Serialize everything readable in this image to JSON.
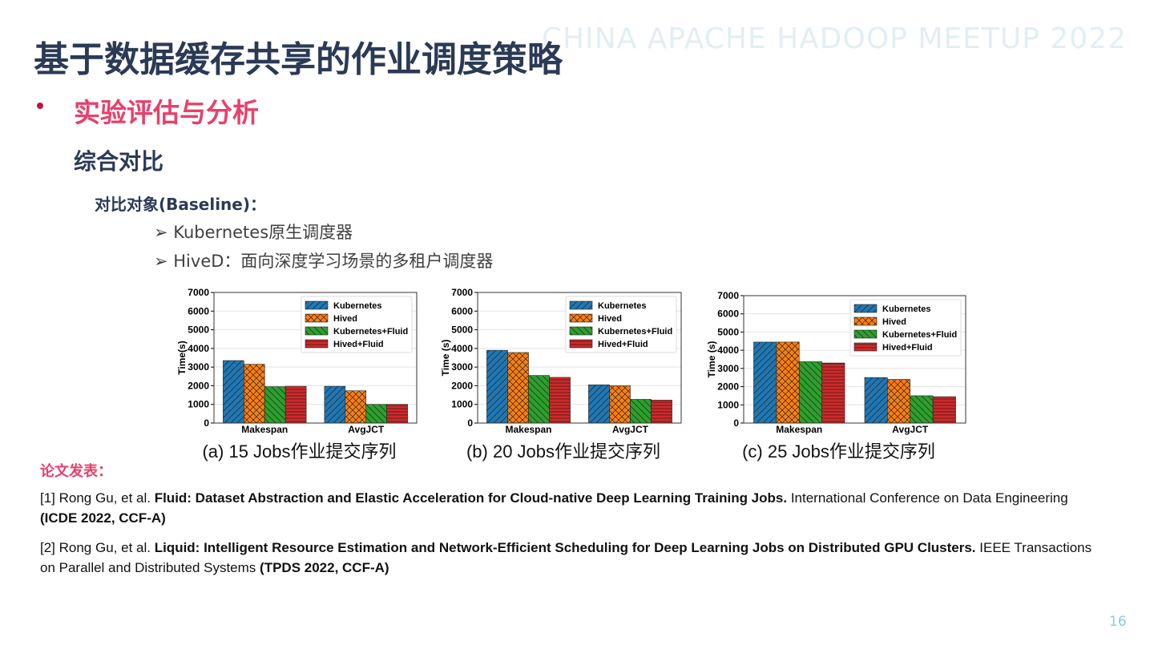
{
  "title": "基于数据缓存共享的作业调度策略",
  "watermark": "CHINA APACHE HADOOP MEETUP 2022",
  "bullet": "实验评估与分析",
  "subheading": "综合对比",
  "baseline_heading": "对比对象(Baseline)：",
  "baselines": [
    "➢ Kubernetes原生调度器",
    "➢ HiveD：面向深度学习场景的多租户调度器"
  ],
  "publications_heading": "论文发表：",
  "references": [
    {
      "prefix": "[1] Rong Gu, et al. ",
      "paper": "Fluid: Dataset Abstraction and Elastic Acceleration for Cloud-native Deep Learning Training Jobs.",
      "venue_text": " International Conference on Data Engineering ",
      "venue": "(ICDE 2022, CCF-A)"
    },
    {
      "prefix": "[2] Rong Gu, et al. ",
      "paper": "Liquid: Intelligent Resource Estimation and Network-Efficient Scheduling for Deep Learning Jobs on Distributed GPU Clusters.",
      "venue_text": " IEEE Transactions on Parallel and Distributed Systems ",
      "venue": "(TPDS 2022, CCF-A)"
    }
  ],
  "page_number": "16",
  "chart_data": [
    {
      "type": "bar",
      "caption": "(a) 15 Jobs作业提交序列",
      "ylabel": "Time(s)",
      "categories": [
        "Makespan",
        "AvgJCT"
      ],
      "series": [
        {
          "name": "Kubernetes",
          "color": "#1f77b4",
          "values": [
            3350,
            1970
          ]
        },
        {
          "name": "Hived",
          "color": "#ff7f0e",
          "values": [
            3150,
            1730
          ]
        },
        {
          "name": "Kubernetes+Fluid",
          "color": "#2ca02c",
          "values": [
            1950,
            1000
          ]
        },
        {
          "name": "Hived+Fluid",
          "color": "#d62728",
          "values": [
            1970,
            1000
          ]
        }
      ],
      "ylim": [
        0,
        7000
      ],
      "yticks": [
        0,
        1000,
        2000,
        3000,
        4000,
        5000,
        6000,
        7000
      ],
      "grid": true,
      "legend": "upper right"
    },
    {
      "type": "bar",
      "caption": "(b) 20 Jobs作业提交序列",
      "ylabel": "Time (s)",
      "categories": [
        "Makespan",
        "AvgJCT"
      ],
      "series": [
        {
          "name": "Kubernetes",
          "color": "#1f77b4",
          "values": [
            3900,
            2050
          ]
        },
        {
          "name": "Hived",
          "color": "#ff7f0e",
          "values": [
            3780,
            2000
          ]
        },
        {
          "name": "Kubernetes+Fluid",
          "color": "#2ca02c",
          "values": [
            2550,
            1270
          ]
        },
        {
          "name": "Hived+Fluid",
          "color": "#d62728",
          "values": [
            2450,
            1230
          ]
        }
      ],
      "ylim": [
        0,
        7000
      ],
      "yticks": [
        0,
        1000,
        2000,
        3000,
        4000,
        5000,
        6000,
        7000
      ],
      "grid": true,
      "legend": "upper right"
    },
    {
      "type": "bar",
      "caption": "(c) 25 Jobs作业提交序列",
      "ylabel": "Time (s)",
      "categories": [
        "Makespan",
        "AvgJCT"
      ],
      "series": [
        {
          "name": "Kubernetes",
          "color": "#1f77b4",
          "values": [
            4450,
            2500
          ]
        },
        {
          "name": "Hived",
          "color": "#ff7f0e",
          "values": [
            4450,
            2400
          ]
        },
        {
          "name": "Kubernetes+Fluid",
          "color": "#2ca02c",
          "values": [
            3370,
            1500
          ]
        },
        {
          "name": "Hived+Fluid",
          "color": "#d62728",
          "values": [
            3300,
            1450
          ]
        }
      ],
      "ylim": [
        0,
        7000
      ],
      "yticks": [
        0,
        1000,
        2000,
        3000,
        4000,
        5000,
        6000,
        7000
      ],
      "grid": true,
      "legend": "upper right"
    }
  ]
}
